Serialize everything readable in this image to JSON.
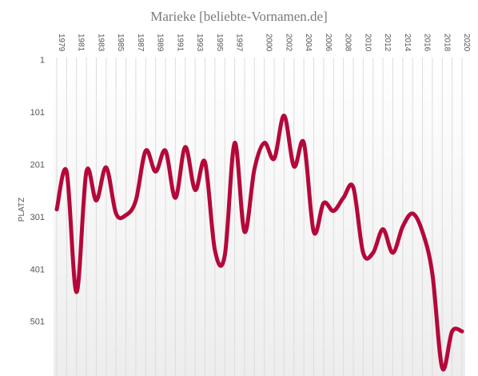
{
  "chart_data": {
    "type": "line",
    "title": "Marieke  [beliebte-Vornamen.de]",
    "ylabel": "PLATZ",
    "y_inverted": true,
    "ylim": [
      1,
      590
    ],
    "y_ticks": [
      1,
      101,
      201,
      301,
      401,
      501
    ],
    "x_tick_labels": [
      "1979",
      "1981",
      "1983",
      "1985",
      "1987",
      "1989",
      "1991",
      "1993",
      "1995",
      "1997",
      "2000",
      "2002",
      "2004",
      "2006",
      "2008",
      "2010",
      "2012",
      "2014",
      "2016",
      "2018",
      "2020"
    ],
    "grid_vertical": true,
    "legend": "none",
    "series_color": "#b5083a",
    "series": [
      {
        "x": [
          1979,
          1980,
          1981,
          1982,
          1983,
          1984,
          1985,
          1986,
          1987,
          1988,
          1989,
          1990,
          1991,
          1992,
          1993,
          1994,
          1995,
          1996,
          1997,
          1998,
          1999,
          2000,
          2001,
          2002,
          2003,
          2004,
          2005,
          2006,
          2007,
          2008,
          2009,
          2010,
          2011,
          2012,
          2013,
          2014,
          2015,
          2016,
          2017,
          2018,
          2019,
          2020
        ],
        "values": [
          287,
          215,
          445,
          215,
          270,
          207,
          295,
          298,
          270,
          175,
          215,
          175,
          265,
          168,
          250,
          197,
          365,
          375,
          160,
          330,
          210,
          160,
          190,
          108,
          205,
          160,
          330,
          275,
          290,
          265,
          245,
          370,
          370,
          325,
          370,
          320,
          295,
          330,
          410,
          590,
          520,
          520
        ]
      }
    ]
  }
}
